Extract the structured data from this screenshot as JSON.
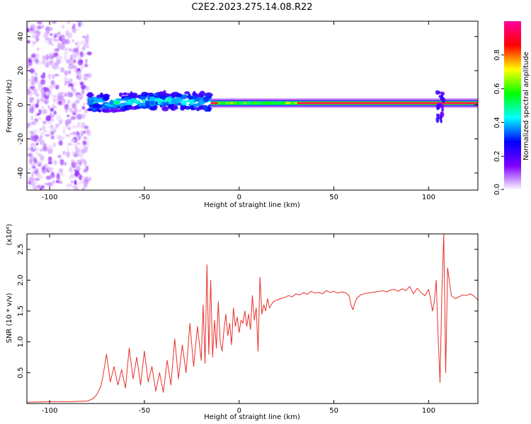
{
  "title": "C2E2.2023.275.14.08.R22",
  "chart_data": [
    {
      "type": "heatmap",
      "xlabel": "Height of straight line (km)",
      "ylabel": "Frequency (Hz)",
      "xlim": [
        -112,
        126
      ],
      "ylim": [
        -50,
        49
      ],
      "xticks": [
        "-100",
        "-50",
        "0",
        "50",
        "100"
      ],
      "xtick_values": [
        -100,
        -50,
        0,
        50,
        100
      ],
      "yticks": [
        "40",
        "20",
        "0",
        "-20",
        "-40"
      ],
      "ytick_values": [
        40,
        20,
        0,
        -20,
        -40
      ],
      "colorbar": {
        "label": "Normalized spectral amplitude",
        "range": [
          0,
          1
        ],
        "ticks": [
          "0.0",
          "0.2",
          "0.4",
          "0.6",
          "0.8"
        ],
        "tick_values": [
          0,
          0.2,
          0.4,
          0.6,
          0.8
        ],
        "colors": [
          "#ffffff",
          "#8000ff",
          "#0000ff",
          "#00ffff",
          "#00ff00",
          "#ffff00",
          "#ff0000",
          "#ff00a0"
        ]
      },
      "regions": [
        {
          "x_range": [
            -112,
            -79
          ],
          "freq_range": [
            -50,
            49
          ],
          "amplitude": 0.1,
          "pattern": "scattered noise"
        },
        {
          "x_range": [
            -79,
            -15
          ],
          "freq_range": [
            -5,
            9
          ],
          "amplitude": 0.35,
          "pattern": "blobs"
        },
        {
          "x_range": [
            -15,
            126
          ],
          "center_freq": 1,
          "amplitude": 1.0,
          "pattern": "narrow line"
        },
        {
          "x_range": [
            104,
            108
          ],
          "freq_range": [
            -12,
            8
          ],
          "amplitude": 0.15,
          "pattern": "spike"
        }
      ]
    },
    {
      "type": "line",
      "xlabel": "Height of straight line (km)",
      "ylabel": "SNR (10 * v/v)",
      "y_multiplier": "(x10⁴)",
      "xlim": [
        -112,
        126
      ],
      "ylim": [
        0,
        27500
      ],
      "xticks": [
        "-100",
        "-50",
        "0",
        "50",
        "100"
      ],
      "xtick_values": [
        -100,
        -50,
        0,
        50,
        100
      ],
      "yticks": [
        "0.5",
        "1.0",
        "1.5",
        "2.0",
        "2.5"
      ],
      "ytick_values": [
        5000,
        10000,
        15000,
        20000,
        25000
      ],
      "line_color": "#e8302a",
      "series": [
        {
          "x": [
            -112,
            -100,
            -90,
            -80,
            -77,
            -75,
            -73,
            -72,
            -70,
            -68,
            -66,
            -64,
            -62,
            -60,
            -58,
            -56,
            -54,
            -52,
            -50,
            -48,
            -46,
            -44,
            -42,
            -40,
            -38,
            -36,
            -34,
            -32,
            -30,
            -28,
            -26,
            -24,
            -22,
            -20,
            -19,
            -18,
            -17,
            -16,
            -15,
            -14,
            -13,
            -12,
            -11,
            -10,
            -9,
            -8,
            -7,
            -6,
            -5,
            -4,
            -3,
            -2,
            -1,
            0,
            1,
            2,
            3,
            4,
            5,
            6,
            7,
            8,
            9,
            10,
            11,
            12,
            13,
            14,
            15,
            16,
            18,
            20,
            22,
            24,
            26,
            28,
            30,
            32,
            34,
            36,
            38,
            40,
            42,
            44,
            46,
            48,
            50,
            52,
            54,
            56,
            58,
            59,
            60,
            61,
            62,
            64,
            66,
            68,
            70,
            72,
            74,
            76,
            78,
            80,
            82,
            84,
            86,
            88,
            90,
            92,
            94,
            96,
            98,
            100,
            101,
            102,
            103,
            104,
            105,
            106,
            107,
            108,
            109,
            110,
            112,
            114,
            116,
            118,
            120,
            122,
            124,
            126
          ],
          "y": [
            200,
            300,
            300,
            400,
            800,
            1500,
            2800,
            4200,
            8000,
            3500,
            6000,
            3000,
            5500,
            2500,
            9000,
            4000,
            7500,
            3000,
            8500,
            3500,
            6000,
            2000,
            5000,
            1800,
            7000,
            3000,
            10500,
            4000,
            9500,
            5000,
            13000,
            6000,
            12500,
            7000,
            16000,
            6500,
            22500,
            8000,
            20000,
            7500,
            13500,
            9000,
            16500,
            10000,
            8500,
            12000,
            14500,
            11000,
            13000,
            9500,
            15500,
            12500,
            14000,
            11500,
            13500,
            13000,
            15000,
            12500,
            14500,
            12000,
            17500,
            13500,
            15500,
            8500,
            20500,
            14500,
            16000,
            15000,
            17000,
            15500,
            16500,
            16800,
            17000,
            17200,
            17500,
            17300,
            17800,
            17600,
            18000,
            17700,
            18200,
            17900,
            18000,
            17800,
            18300,
            18000,
            18200,
            17900,
            18100,
            18000,
            17500,
            16000,
            15200,
            16200,
            17000,
            17600,
            17800,
            17900,
            18000,
            18100,
            18200,
            18300,
            18100,
            18400,
            18500,
            18200,
            18600,
            18300,
            19000,
            17800,
            18700,
            18000,
            17500,
            18500,
            17000,
            15000,
            16500,
            20000,
            11000,
            3400,
            18000,
            27500,
            5000,
            22000,
            17500,
            17000,
            17300,
            17600,
            17500,
            17800,
            17400,
            16800
          ]
        }
      ]
    }
  ]
}
